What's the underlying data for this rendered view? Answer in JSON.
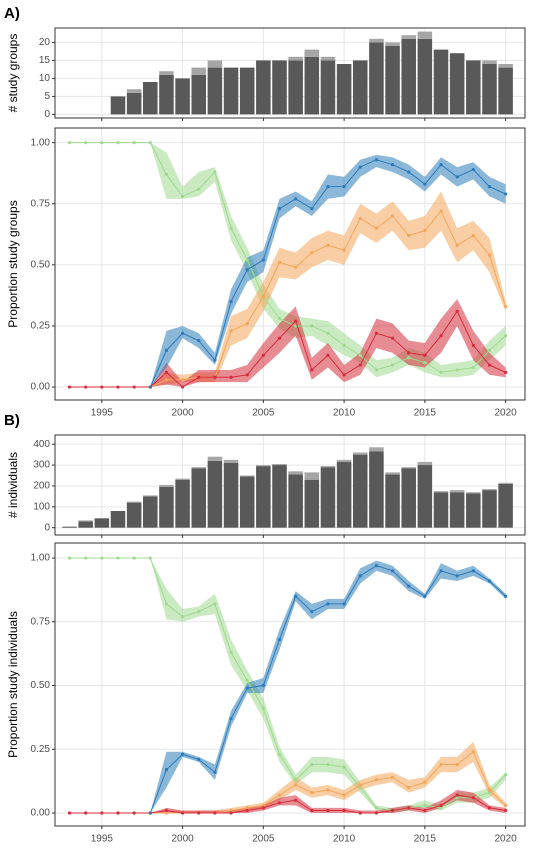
{
  "chart_data": [
    {
      "type": "bar",
      "panel_label": "A)",
      "ylabel": "# study groups",
      "stacked": true,
      "grid": true,
      "xtick_labels": false,
      "x": [
        1993,
        1994,
        1995,
        1996,
        1997,
        1998,
        1999,
        2000,
        2001,
        2002,
        2003,
        2004,
        2005,
        2006,
        2007,
        2008,
        2009,
        2010,
        2011,
        2012,
        2013,
        2014,
        2015,
        2016,
        2017,
        2018,
        2019,
        2020
      ],
      "xlim": [
        1992.1,
        2021.2
      ],
      "xticks": [
        1995,
        2000,
        2005,
        2010,
        2015,
        2020
      ],
      "ylim": [
        -1,
        24
      ],
      "yticks": [
        0,
        5,
        10,
        15,
        20
      ],
      "series": [
        {
          "color": "#595959",
          "values": [
            null,
            null,
            null,
            5,
            6,
            9,
            11,
            10,
            11,
            13,
            13,
            13,
            15,
            15,
            15,
            16,
            15,
            14,
            15,
            20,
            19,
            21,
            21,
            18,
            17,
            15,
            14,
            13
          ]
        },
        {
          "color": "#a6a6a6",
          "values": [
            null,
            null,
            null,
            0,
            1,
            0,
            1,
            0,
            2,
            2,
            0,
            0,
            0,
            0,
            1,
            2,
            1,
            0,
            0,
            1,
            1,
            1,
            2,
            0,
            0,
            0,
            1,
            1
          ]
        }
      ]
    },
    {
      "type": "line",
      "ylabel": "Proportion study groups",
      "grid": true,
      "xtick_labels": true,
      "x": [
        1993,
        1994,
        1995,
        1996,
        1997,
        1998,
        1999,
        2000,
        2001,
        2002,
        2003,
        2004,
        2005,
        2006,
        2007,
        2008,
        2009,
        2010,
        2011,
        2012,
        2013,
        2014,
        2015,
        2016,
        2017,
        2018,
        2019,
        2020
      ],
      "xlim": [
        1992.1,
        2021.2
      ],
      "xticks": [
        1995,
        2000,
        2005,
        2010,
        2015,
        2020
      ],
      "ylim": [
        -0.053,
        1.06
      ],
      "yticks": [
        {
          "value": 0,
          "label": "0.00"
        },
        {
          "value": 0.25,
          "label": "0.25"
        },
        {
          "value": 0.5,
          "label": "0.50"
        },
        {
          "value": 0.75,
          "label": "0.75"
        },
        {
          "value": 1,
          "label": "1.00"
        }
      ],
      "series": [
        {
          "color": "#9fd98f",
          "values": [
            1,
            1,
            1,
            1,
            1,
            1,
            0.87,
            0.78,
            0.81,
            0.88,
            0.65,
            0.52,
            0.37,
            0.28,
            0.25,
            0.25,
            0.22,
            0.17,
            0.13,
            0.07,
            0.09,
            0.12,
            0.1,
            0.06,
            0.07,
            0.08,
            0.15,
            0.21
          ],
          "lower": [
            1,
            1,
            1,
            1,
            1,
            1,
            0.77,
            0.77,
            0.78,
            0.84,
            0.6,
            0.47,
            0.32,
            0.24,
            0.2,
            0.21,
            0.17,
            0.13,
            0.1,
            0.04,
            0.06,
            0.09,
            0.06,
            0.04,
            0.04,
            0.05,
            0.11,
            0.17
          ],
          "upper": [
            1,
            1,
            1,
            1,
            1,
            1,
            0.96,
            0.82,
            0.88,
            0.9,
            0.7,
            0.57,
            0.42,
            0.32,
            0.29,
            0.28,
            0.27,
            0.22,
            0.17,
            0.11,
            0.12,
            0.16,
            0.14,
            0.09,
            0.1,
            0.11,
            0.19,
            0.25
          ]
        },
        {
          "color": "#f5a55a",
          "values": [
            null,
            null,
            null,
            null,
            null,
            0,
            0.03,
            0.03,
            0.04,
            0.04,
            0.23,
            0.26,
            0.37,
            0.51,
            0.49,
            0.55,
            0.58,
            0.56,
            0.69,
            0.65,
            0.7,
            0.62,
            0.64,
            0.72,
            0.58,
            0.62,
            0.54,
            0.33
          ],
          "lower": [
            null,
            null,
            null,
            null,
            null,
            0,
            0.01,
            0.02,
            0.02,
            0.02,
            0.17,
            0.2,
            0.31,
            0.45,
            0.44,
            0.49,
            0.52,
            0.5,
            0.63,
            0.59,
            0.64,
            0.56,
            0.57,
            0.64,
            0.51,
            0.56,
            0.47,
            0.31
          ],
          "upper": [
            null,
            null,
            null,
            null,
            null,
            0,
            0.06,
            0.05,
            0.06,
            0.06,
            0.29,
            0.32,
            0.43,
            0.57,
            0.55,
            0.61,
            0.64,
            0.62,
            0.75,
            0.71,
            0.76,
            0.68,
            0.7,
            0.8,
            0.65,
            0.68,
            0.61,
            0.35
          ]
        },
        {
          "color": "#d62d3c",
          "values": [
            0,
            0,
            0,
            0,
            0,
            0,
            0.06,
            0.0,
            0.04,
            0.04,
            0.04,
            0.05,
            0.13,
            0.2,
            0.27,
            0.07,
            0.13,
            0.05,
            0.09,
            0.22,
            0.2,
            0.14,
            0.13,
            0.21,
            0.31,
            0.17,
            0.09,
            0.06
          ],
          "lower": [
            0,
            0,
            0,
            0,
            0,
            0,
            0.01,
            0.0,
            0.02,
            0.02,
            0.02,
            0.02,
            0.08,
            0.14,
            0.21,
            0.03,
            0.08,
            0.02,
            0.05,
            0.16,
            0.14,
            0.09,
            0.08,
            0.14,
            0.25,
            0.11,
            0.05,
            0.04
          ],
          "upper": [
            0,
            0,
            0,
            0,
            0,
            0,
            0.1,
            0.02,
            0.07,
            0.07,
            0.07,
            0.09,
            0.18,
            0.26,
            0.33,
            0.12,
            0.18,
            0.09,
            0.14,
            0.28,
            0.26,
            0.19,
            0.18,
            0.28,
            0.36,
            0.23,
            0.14,
            0.08
          ]
        },
        {
          "color": "#2b7bba",
          "values": [
            null,
            null,
            null,
            null,
            null,
            0,
            0.15,
            0.22,
            0.19,
            0.11,
            0.35,
            0.48,
            0.52,
            0.73,
            0.77,
            0.73,
            0.82,
            0.82,
            0.9,
            0.93,
            0.91,
            0.88,
            0.83,
            0.91,
            0.86,
            0.89,
            0.82,
            0.79
          ],
          "lower": [
            null,
            null,
            null,
            null,
            null,
            0,
            0.08,
            0.2,
            0.16,
            0.09,
            0.3,
            0.43,
            0.47,
            0.69,
            0.74,
            0.7,
            0.77,
            0.78,
            0.86,
            0.9,
            0.88,
            0.85,
            0.8,
            0.87,
            0.82,
            0.85,
            0.78,
            0.75
          ],
          "upper": [
            null,
            null,
            null,
            null,
            null,
            0,
            0.23,
            0.25,
            0.22,
            0.14,
            0.4,
            0.53,
            0.56,
            0.77,
            0.8,
            0.76,
            0.87,
            0.86,
            0.93,
            0.95,
            0.94,
            0.91,
            0.86,
            0.94,
            0.9,
            0.92,
            0.86,
            0.83
          ]
        }
      ]
    },
    {
      "type": "bar",
      "panel_label": "B)",
      "ylabel": "# individuals",
      "stacked": true,
      "grid": true,
      "xtick_labels": false,
      "x": [
        1993,
        1994,
        1995,
        1996,
        1997,
        1998,
        1999,
        2000,
        2001,
        2002,
        2003,
        2004,
        2005,
        2006,
        2007,
        2008,
        2009,
        2010,
        2011,
        2012,
        2013,
        2014,
        2015,
        2016,
        2017,
        2018,
        2019,
        2020
      ],
      "xlim": [
        1992.1,
        2021.2
      ],
      "xticks": [
        1995,
        2000,
        2005,
        2010,
        2015,
        2020
      ],
      "ylim": [
        -35,
        444
      ],
      "yticks": [
        0,
        100,
        200,
        300,
        400
      ],
      "series": [
        {
          "color": "#595959",
          "values": [
            5,
            30,
            45,
            80,
            120,
            150,
            195,
            230,
            285,
            320,
            310,
            245,
            295,
            300,
            255,
            230,
            290,
            315,
            350,
            365,
            255,
            285,
            300,
            170,
            170,
            165,
            180,
            210
          ]
        },
        {
          "color": "#a6a6a6",
          "values": [
            0,
            5,
            0,
            0,
            5,
            5,
            10,
            5,
            5,
            20,
            15,
            5,
            5,
            5,
            15,
            35,
            5,
            10,
            10,
            20,
            10,
            5,
            15,
            5,
            10,
            5,
            5,
            5
          ]
        }
      ]
    },
    {
      "type": "line",
      "ylabel": "Proportion study individuals",
      "grid": true,
      "xtick_labels": true,
      "x": [
        1993,
        1994,
        1995,
        1996,
        1997,
        1998,
        1999,
        2000,
        2001,
        2002,
        2003,
        2004,
        2005,
        2006,
        2007,
        2008,
        2009,
        2010,
        2011,
        2012,
        2013,
        2014,
        2015,
        2016,
        2017,
        2018,
        2019,
        2020
      ],
      "xlim": [
        1992.1,
        2021.2
      ],
      "xticks": [
        1995,
        2000,
        2005,
        2010,
        2015,
        2020
      ],
      "ylim": [
        -0.051,
        1.059
      ],
      "yticks": [
        {
          "value": 0,
          "label": "0.00"
        },
        {
          "value": 0.25,
          "label": "0.25"
        },
        {
          "value": 0.5,
          "label": "0.50"
        },
        {
          "value": 0.75,
          "label": "0.75"
        },
        {
          "value": 1,
          "label": "1.00"
        }
      ],
      "series": [
        {
          "color": "#9fd98f",
          "values": [
            1,
            1,
            1,
            1,
            1,
            1,
            0.82,
            0.77,
            0.79,
            0.82,
            0.63,
            0.52,
            0.41,
            0.23,
            0.13,
            0.19,
            0.19,
            0.18,
            0.1,
            0.02,
            0.01,
            0.02,
            0.03,
            0.02,
            0.06,
            0.06,
            0.08,
            0.15
          ],
          "lower": [
            1,
            1,
            1,
            1,
            1,
            1,
            0.76,
            0.75,
            0.77,
            0.78,
            0.58,
            0.48,
            0.37,
            0.2,
            0.11,
            0.16,
            0.16,
            0.15,
            0.08,
            0.01,
            0.0,
            0.01,
            0.02,
            0.01,
            0.04,
            0.04,
            0.06,
            0.13
          ],
          "upper": [
            1,
            1,
            1,
            1,
            1,
            1,
            0.88,
            0.8,
            0.81,
            0.86,
            0.68,
            0.56,
            0.45,
            0.26,
            0.15,
            0.22,
            0.22,
            0.21,
            0.12,
            0.03,
            0.02,
            0.03,
            0.05,
            0.03,
            0.08,
            0.08,
            0.1,
            0.16
          ]
        },
        {
          "color": "#f5a55a",
          "values": [
            null,
            null,
            null,
            null,
            null,
            0,
            0,
            0,
            0,
            0,
            0.01,
            0.02,
            0.03,
            0.07,
            0.11,
            0.08,
            0.09,
            0.07,
            0.11,
            0.13,
            0.14,
            0.1,
            0.12,
            0.19,
            0.19,
            0.24,
            0.09,
            0.03
          ],
          "lower": [
            null,
            null,
            null,
            null,
            null,
            0,
            0,
            0,
            0,
            0,
            0.0,
            0.01,
            0.02,
            0.05,
            0.09,
            0.06,
            0.07,
            0.05,
            0.09,
            0.11,
            0.12,
            0.08,
            0.1,
            0.16,
            0.16,
            0.2,
            0.07,
            0.02
          ],
          "upper": [
            null,
            null,
            null,
            null,
            null,
            0,
            0.01,
            0.01,
            0.01,
            0.01,
            0.02,
            0.03,
            0.04,
            0.09,
            0.14,
            0.1,
            0.11,
            0.09,
            0.13,
            0.15,
            0.16,
            0.13,
            0.14,
            0.22,
            0.22,
            0.28,
            0.11,
            0.04
          ]
        },
        {
          "color": "#d62d3c",
          "values": [
            0,
            0,
            0,
            0,
            0,
            0,
            0.01,
            0,
            0,
            0,
            0,
            0.01,
            0.02,
            0.04,
            0.05,
            0.01,
            0.01,
            0.01,
            0,
            0,
            0.01,
            0.02,
            0.01,
            0.03,
            0.07,
            0.06,
            0.02,
            0.01
          ],
          "lower": [
            0,
            0,
            0,
            0,
            0,
            0,
            0.0,
            0,
            0,
            0,
            0,
            0.0,
            0.01,
            0.03,
            0.03,
            0.0,
            0.0,
            0.0,
            0,
            0,
            0.0,
            0.01,
            0.0,
            0.02,
            0.05,
            0.04,
            0.01,
            0.0
          ],
          "upper": [
            0,
            0,
            0,
            0,
            0,
            0,
            0.02,
            0.01,
            0.01,
            0.01,
            0.01,
            0.02,
            0.03,
            0.06,
            0.07,
            0.02,
            0.02,
            0.02,
            0.01,
            0.01,
            0.02,
            0.03,
            0.02,
            0.05,
            0.09,
            0.08,
            0.03,
            0.02
          ]
        },
        {
          "color": "#2b7bba",
          "values": [
            null,
            null,
            null,
            null,
            null,
            0,
            0.17,
            0.23,
            0.21,
            0.16,
            0.37,
            0.49,
            0.5,
            0.68,
            0.85,
            0.79,
            0.82,
            0.82,
            0.93,
            0.97,
            0.95,
            0.89,
            0.85,
            0.95,
            0.93,
            0.95,
            0.91,
            0.85
          ],
          "lower": [
            null,
            null,
            null,
            null,
            null,
            0,
            0.1,
            0.22,
            0.2,
            0.13,
            0.34,
            0.47,
            0.47,
            0.64,
            0.83,
            0.76,
            0.8,
            0.8,
            0.9,
            0.95,
            0.93,
            0.87,
            0.84,
            0.92,
            0.91,
            0.93,
            0.9,
            0.84
          ],
          "upper": [
            null,
            null,
            null,
            null,
            null,
            0,
            0.24,
            0.24,
            0.22,
            0.19,
            0.4,
            0.51,
            0.53,
            0.72,
            0.87,
            0.82,
            0.84,
            0.84,
            0.96,
            0.99,
            0.97,
            0.91,
            0.86,
            0.98,
            0.95,
            0.97,
            0.92,
            0.86
          ]
        }
      ]
    }
  ]
}
